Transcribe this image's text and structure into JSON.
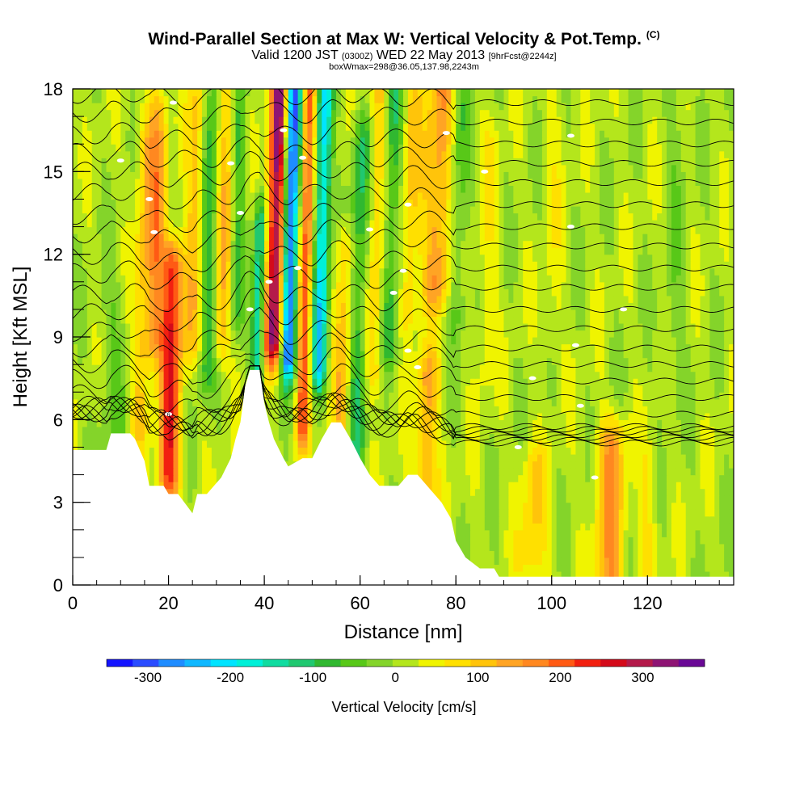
{
  "title": {
    "main": "Wind-Parallel Section at Max W: Vertical Velocity & Pot.Temp.",
    "copyright": "(C)",
    "line2_a": "Valid 1200 JST",
    "line2_b": "(0300Z)",
    "line2_c": "WED 22 May 2013",
    "line2_d": "[9hrFcst@2244z]",
    "line3": "boxWmax=298@36.05,137.98,2243m"
  },
  "chart_data": {
    "type": "heatmap",
    "xlabel": "Distance [nm]",
    "ylabel": "Height [Kft MSL]",
    "xlim": [
      0,
      138
    ],
    "ylim": [
      0,
      18
    ],
    "x_ticks": [
      0,
      20,
      40,
      60,
      80,
      100,
      120
    ],
    "y_ticks": [
      0,
      3,
      6,
      9,
      12,
      15,
      18
    ],
    "x_minor_step": 5,
    "y_minor_step": 1,
    "colorbar": {
      "label": "Vertical Velocity [cm/s]",
      "min": -350,
      "max": 375,
      "ticks": [
        -300,
        -200,
        -100,
        0,
        100,
        200,
        300
      ],
      "colors": [
        "#1414ff",
        "#2a4cff",
        "#1e8cff",
        "#10b8ff",
        "#00e4ff",
        "#00f0d8",
        "#10dca0",
        "#20c870",
        "#30b830",
        "#58c818",
        "#84d42a",
        "#b4e61c",
        "#f0f400",
        "#ffe000",
        "#ffc40a",
        "#ffa424",
        "#ff8820",
        "#ff5a14",
        "#f22010",
        "#d40a1a",
        "#b41a4a",
        "#8e1474",
        "#6a0896"
      ]
    },
    "terrain_kft": [
      [
        0,
        4.9
      ],
      [
        7,
        4.9
      ],
      [
        8,
        5.5
      ],
      [
        12,
        5.5
      ],
      [
        13,
        5.3
      ],
      [
        15,
        4.5
      ],
      [
        16,
        3.6
      ],
      [
        19,
        3.6
      ],
      [
        20,
        3.3
      ],
      [
        22,
        3.3
      ],
      [
        25,
        2.6
      ],
      [
        26,
        3.3
      ],
      [
        28,
        3.3
      ],
      [
        31,
        3.9
      ],
      [
        33,
        4.6
      ],
      [
        34,
        5.3
      ],
      [
        35,
        5.9
      ],
      [
        36,
        7.2
      ],
      [
        37,
        7.8
      ],
      [
        39,
        7.8
      ],
      [
        40,
        6.6
      ],
      [
        41,
        5.9
      ],
      [
        42,
        5.3
      ],
      [
        44,
        4.6
      ],
      [
        45,
        4.3
      ],
      [
        48,
        4.6
      ],
      [
        50,
        4.6
      ],
      [
        52,
        5.3
      ],
      [
        54,
        5.9
      ],
      [
        56,
        5.9
      ],
      [
        58,
        5.3
      ],
      [
        60,
        4.6
      ],
      [
        62,
        4.0
      ],
      [
        64,
        3.6
      ],
      [
        68,
        3.6
      ],
      [
        70,
        4.0
      ],
      [
        72,
        4.0
      ],
      [
        74,
        3.6
      ],
      [
        77,
        3.0
      ],
      [
        79,
        2.4
      ],
      [
        80,
        1.6
      ],
      [
        82,
        1.0
      ],
      [
        85,
        0.6
      ],
      [
        88,
        0.6
      ],
      [
        89,
        0.3
      ],
      [
        138,
        0.3
      ]
    ],
    "velocity_features": [
      {
        "x": 20,
        "y": [
          4,
          11.5
        ],
        "w": 2.2,
        "v": 230
      },
      {
        "x": 42,
        "y": [
          9,
          18
        ],
        "w": 1.8,
        "v": 330
      },
      {
        "x": 45,
        "y": [
          8.5,
          18
        ],
        "w": 1.6,
        "v": -320
      },
      {
        "x": 48,
        "y": [
          6,
          18
        ],
        "w": 1.4,
        "v": 200
      },
      {
        "x": 51.5,
        "y": [
          8,
          18
        ],
        "w": 1.6,
        "v": -220
      },
      {
        "x": 38.5,
        "y": [
          8,
          13
        ],
        "w": 1.2,
        "v": -170
      },
      {
        "x": 14,
        "y": [
          6,
          16
        ],
        "w": 2,
        "v": 80
      },
      {
        "x": 17,
        "y": [
          9,
          17
        ],
        "w": 2,
        "v": 130
      },
      {
        "x": 25,
        "y": [
          9,
          18
        ],
        "w": 2,
        "v": 95
      },
      {
        "x": 28,
        "y": [
          8,
          18
        ],
        "w": 2,
        "v": -100
      },
      {
        "x": 31,
        "y": [
          9,
          18
        ],
        "w": 2,
        "v": 110
      },
      {
        "x": 34,
        "y": [
          10,
          18
        ],
        "w": 1.5,
        "v": -80
      },
      {
        "x": 56,
        "y": [
          4,
          12
        ],
        "w": 2,
        "v": 110
      },
      {
        "x": 59,
        "y": [
          5,
          16
        ],
        "w": 2,
        "v": -110
      },
      {
        "x": 63,
        "y": [
          8,
          18
        ],
        "w": 2,
        "v": 90
      },
      {
        "x": 66,
        "y": [
          9,
          18
        ],
        "w": 2,
        "v": -100
      },
      {
        "x": 70,
        "y": [
          10,
          18
        ],
        "w": 2,
        "v": 85
      },
      {
        "x": 73.5,
        "y": [
          3,
          7.5
        ],
        "w": 2.5,
        "v": 120
      },
      {
        "x": 76,
        "y": [
          11,
          18
        ],
        "w": 3,
        "v": 140
      },
      {
        "x": 80,
        "y": [
          10,
          18
        ],
        "w": 2,
        "v": -70
      },
      {
        "x": 86,
        "y": [
          8,
          16
        ],
        "w": 2,
        "v": 40
      },
      {
        "x": 96,
        "y": [
          1,
          4
        ],
        "w": 3,
        "v": 80
      },
      {
        "x": 112,
        "y": [
          0.5,
          5
        ],
        "w": 3,
        "v": 140
      },
      {
        "x": 120,
        "y": [
          0.5,
          4
        ],
        "w": 2,
        "v": 50
      },
      {
        "x": 8,
        "y": [
          5,
          10
        ],
        "w": 3,
        "v": -40
      },
      {
        "x": 100,
        "y": [
          9,
          18
        ],
        "w": 2,
        "v": 30
      },
      {
        "x": 125,
        "y": [
          7,
          18
        ],
        "w": 2,
        "v": -30
      }
    ],
    "isentropes_base_kft": [
      5.15,
      5.25,
      5.35,
      5.45,
      5.55,
      5.65,
      5.75,
      6.2,
      6.8,
      7.4,
      8.0,
      8.6,
      9.3,
      10.0,
      10.8,
      11.5,
      12.3,
      13.0,
      13.8,
      14.6,
      15.3,
      16.0,
      16.8,
      17.5
    ],
    "contour_labels": [
      {
        "x": 20,
        "y": 6.2,
        "text": "6"
      },
      {
        "x": 37,
        "y": 10
      },
      {
        "x": 47,
        "y": 11.5
      },
      {
        "x": 70,
        "y": 8.5
      },
      {
        "x": 72,
        "y": 7.9
      },
      {
        "x": 96,
        "y": 7.5
      },
      {
        "x": 106,
        "y": 6.5
      },
      {
        "x": 93,
        "y": 5
      },
      {
        "x": 109,
        "y": 3.9
      },
      {
        "x": 67,
        "y": 10.6
      },
      {
        "x": 69,
        "y": 11.4
      },
      {
        "x": 62,
        "y": 12.9
      },
      {
        "x": 70,
        "y": 13.8
      },
      {
        "x": 86,
        "y": 15
      },
      {
        "x": 78,
        "y": 16.4
      },
      {
        "x": 104,
        "y": 16.3
      },
      {
        "x": 104,
        "y": 13
      },
      {
        "x": 10,
        "y": 15.4
      },
      {
        "x": 16,
        "y": 14
      },
      {
        "x": 17,
        "y": 12.8
      },
      {
        "x": 21,
        "y": 17.5
      },
      {
        "x": 33,
        "y": 15.3
      },
      {
        "x": 35,
        "y": 13.5
      },
      {
        "x": 41,
        "y": 11
      },
      {
        "x": 44,
        "y": 16.5
      },
      {
        "x": 48,
        "y": 15.5
      },
      {
        "x": 115,
        "y": 10
      },
      {
        "x": 105,
        "y": 8.7
      }
    ]
  }
}
